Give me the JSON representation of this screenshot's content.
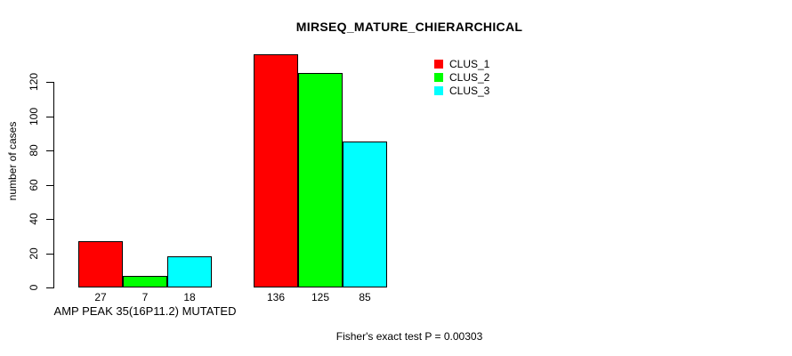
{
  "chart_data": {
    "type": "bar",
    "title": "MIRSEQ_MATURE_CHIERARCHICAL",
    "ylabel": "number of cases",
    "xlabel": "",
    "categories": [
      "AMP PEAK 35(16P11.2) MUTATED",
      ""
    ],
    "series": [
      {
        "name": "CLUS_1",
        "color": "#FF0000",
        "values": [
          27,
          136
        ]
      },
      {
        "name": "CLUS_2",
        "color": "#00FF00",
        "values": [
          7,
          125
        ]
      },
      {
        "name": "CLUS_3",
        "color": "#00FFFF",
        "values": [
          18,
          85
        ]
      }
    ],
    "yticks": [
      0,
      20,
      40,
      60,
      80,
      100,
      120
    ],
    "ylim": [
      0,
      140
    ],
    "grid": false,
    "legend_position": "top-right",
    "bar_value_labels_shown": true,
    "annotation": "Fisher's exact test P = 0.00303"
  },
  "colors": {
    "background": "#FFFFFF",
    "axis": "#000000",
    "text": "#000000"
  }
}
